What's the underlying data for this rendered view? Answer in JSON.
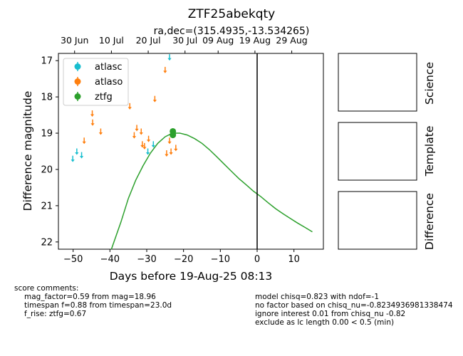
{
  "chart_data": {
    "type": "scatter",
    "title": "ZTF25abekqty",
    "subtitle": "ra,dec=(315.4935,-13.534265)",
    "xlabel": "Days before 19-Aug-25 08:13",
    "ylabel": "Difference magnitude",
    "xlim": [
      -54,
      18
    ],
    "ylim": [
      22.2,
      16.8
    ],
    "y_inverted": true,
    "grid": false,
    "legend_position": "top-left",
    "x_ticks": [
      -50,
      -40,
      -30,
      -20,
      -10,
      0,
      10
    ],
    "x_tick_labels": [
      "−50",
      "−40",
      "−30",
      "−20",
      "−10",
      "0",
      "10"
    ],
    "y_ticks": [
      17,
      18,
      19,
      20,
      21,
      22
    ],
    "y_tick_labels": [
      "17",
      "18",
      "19",
      "20",
      "21",
      "22"
    ],
    "top_axis_ticks": [
      {
        "x": -49.6,
        "label": "30 Jun"
      },
      {
        "x": -39.6,
        "label": "10 Jul"
      },
      {
        "x": -29.6,
        "label": "20 Jul"
      },
      {
        "x": -19.6,
        "label": "30 Jul"
      },
      {
        "x": -10.6,
        "label": "09 Aug"
      },
      {
        "x": -0.6,
        "label": "19 Aug"
      },
      {
        "x": 9.4,
        "label": "29 Aug"
      }
    ],
    "vline_x": 0,
    "series": [
      {
        "name": "atlasc",
        "color": "#17becf",
        "kind": "upper_limit",
        "points": [
          {
            "x": -50.1,
            "y": 19.7
          },
          {
            "x": -49.0,
            "y": 19.5
          },
          {
            "x": -47.7,
            "y": 19.6
          },
          {
            "x": -29.7,
            "y": 19.5
          },
          {
            "x": -28.2,
            "y": 19.3
          },
          {
            "x": -23.8,
            "y": 16.9
          }
        ]
      },
      {
        "name": "atlaso",
        "color": "#ff7f0e",
        "kind": "upper_limit",
        "points": [
          {
            "x": -47.0,
            "y": 19.2
          },
          {
            "x": -44.8,
            "y": 18.45
          },
          {
            "x": -44.7,
            "y": 18.7
          },
          {
            "x": -42.5,
            "y": 18.95
          },
          {
            "x": -34.6,
            "y": 18.25
          },
          {
            "x": -33.4,
            "y": 19.05
          },
          {
            "x": -32.7,
            "y": 18.85
          },
          {
            "x": -31.5,
            "y": 18.95
          },
          {
            "x": -31.2,
            "y": 19.3
          },
          {
            "x": -30.6,
            "y": 19.35
          },
          {
            "x": -29.5,
            "y": 19.15
          },
          {
            "x": -27.8,
            "y": 18.05
          },
          {
            "x": -25.0,
            "y": 17.25
          },
          {
            "x": -24.6,
            "y": 19.55
          },
          {
            "x": -23.8,
            "y": 19.2
          },
          {
            "x": -23.4,
            "y": 19.5
          },
          {
            "x": -22.1,
            "y": 19.4
          }
        ]
      },
      {
        "name": "ztfg",
        "color": "#2ca02c",
        "kind": "detection",
        "points": [
          {
            "x": -22.9,
            "y": 18.95,
            "err": 0.08
          },
          {
            "x": -22.9,
            "y": 19.05,
            "err": 0.08
          }
        ]
      }
    ],
    "model_curve": {
      "color": "#2ca02c",
      "x": [
        -39.6,
        -37,
        -35,
        -33,
        -31,
        -29,
        -27,
        -25,
        -23,
        -21,
        -19,
        -17,
        -15,
        -13,
        -11,
        -9,
        -7,
        -5,
        -3,
        -1,
        1,
        3,
        5,
        7,
        9,
        11,
        13,
        15
      ],
      "y": [
        22.2,
        21.45,
        20.8,
        20.3,
        19.9,
        19.55,
        19.28,
        19.1,
        19.0,
        19.0,
        19.05,
        19.15,
        19.28,
        19.45,
        19.65,
        19.85,
        20.05,
        20.25,
        20.42,
        20.6,
        20.75,
        20.92,
        21.08,
        21.22,
        21.35,
        21.48,
        21.6,
        21.72
      ]
    },
    "side_panels": [
      "Science",
      "Template",
      "Difference"
    ]
  },
  "score_comments": {
    "header": "score comments:",
    "lines": [
      "mag_factor=0.59 from mag=18.96",
      "timespan f=0.88 from timespan=23.0d",
      "f_rise: ztfg=0.67"
    ]
  },
  "model_comments": {
    "lines": [
      "model chisq=0.823 with ndof=-1",
      "no factor based on chisq_nu=-0.8234936981338474",
      "ignore interest 0.01 from chisq_nu -0.82",
      "exclude as lc length 0.00 < 0.5 (min)"
    ]
  }
}
